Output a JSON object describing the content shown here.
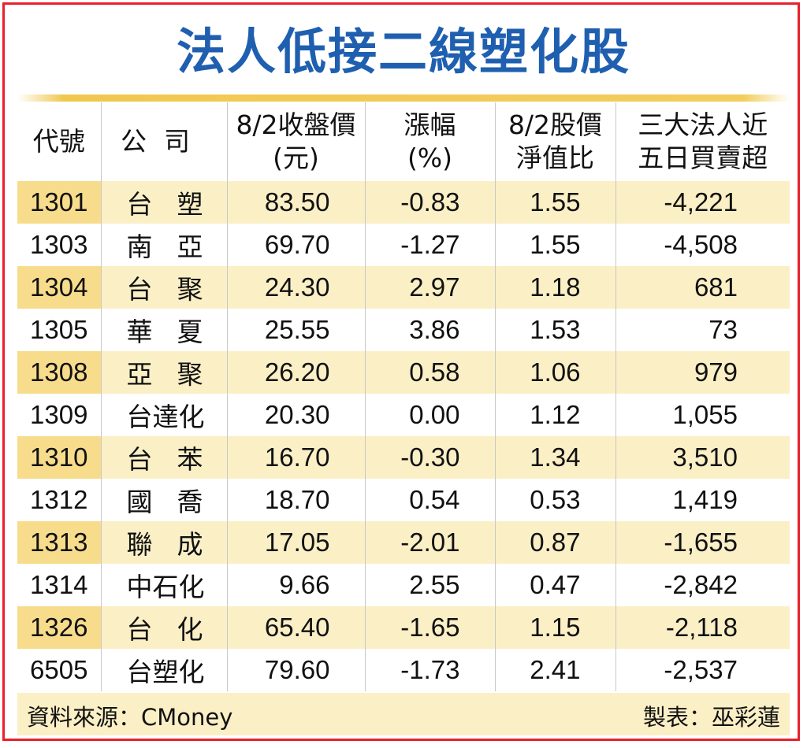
{
  "title": "法人低接二線塑化股",
  "headers": {
    "code": "代號",
    "company": "公司",
    "close_line1": "8/2收盤價",
    "close_line2": "(元)",
    "change_line1": "漲幅",
    "change_line2": "(%)",
    "pb_line1": "8/2股價",
    "pb_line2": "淨值比",
    "inst_line1": "三大法人近",
    "inst_line2": "五日買賣超"
  },
  "rows": [
    {
      "code": "1301",
      "company": "台塑",
      "close": "83.50",
      "change": "-0.83",
      "pb": "1.55",
      "inst": "-4,221"
    },
    {
      "code": "1303",
      "company": "南亞",
      "close": "69.70",
      "change": "-1.27",
      "pb": "1.55",
      "inst": "-4,508"
    },
    {
      "code": "1304",
      "company": "台聚",
      "close": "24.30",
      "change": "2.97",
      "pb": "1.18",
      "inst": "681"
    },
    {
      "code": "1305",
      "company": "華夏",
      "close": "25.55",
      "change": "3.86",
      "pb": "1.53",
      "inst": "73"
    },
    {
      "code": "1308",
      "company": "亞聚",
      "close": "26.20",
      "change": "0.58",
      "pb": "1.06",
      "inst": "979"
    },
    {
      "code": "1309",
      "company": "台達化",
      "close": "20.30",
      "change": "0.00",
      "pb": "1.12",
      "inst": "1,055"
    },
    {
      "code": "1310",
      "company": "台苯",
      "close": "16.70",
      "change": "-0.30",
      "pb": "1.34",
      "inst": "3,510"
    },
    {
      "code": "1312",
      "company": "國喬",
      "close": "18.70",
      "change": "0.54",
      "pb": "0.53",
      "inst": "1,419"
    },
    {
      "code": "1313",
      "company": "聯成",
      "close": "17.05",
      "change": "-2.01",
      "pb": "0.87",
      "inst": "-1,655"
    },
    {
      "code": "1314",
      "company": "中石化",
      "close": "9.66",
      "change": "2.55",
      "pb": "0.47",
      "inst": "-2,842"
    },
    {
      "code": "1326",
      "company": "台化",
      "close": "65.40",
      "change": "-1.65",
      "pb": "1.15",
      "inst": "-2,118"
    },
    {
      "code": "6505",
      "company": "台塑化",
      "close": "79.60",
      "change": "-1.73",
      "pb": "2.41",
      "inst": "-2,537"
    }
  ],
  "footer": {
    "source": "資料來源：CMoney",
    "maker": "製表：巫彩蓮"
  },
  "colors": {
    "title": "#1f5fb0",
    "border": "#e8202a",
    "row_shade": "#fbefc6",
    "code_shade": "#f7dc8c",
    "gold_line": "#f0c850"
  }
}
